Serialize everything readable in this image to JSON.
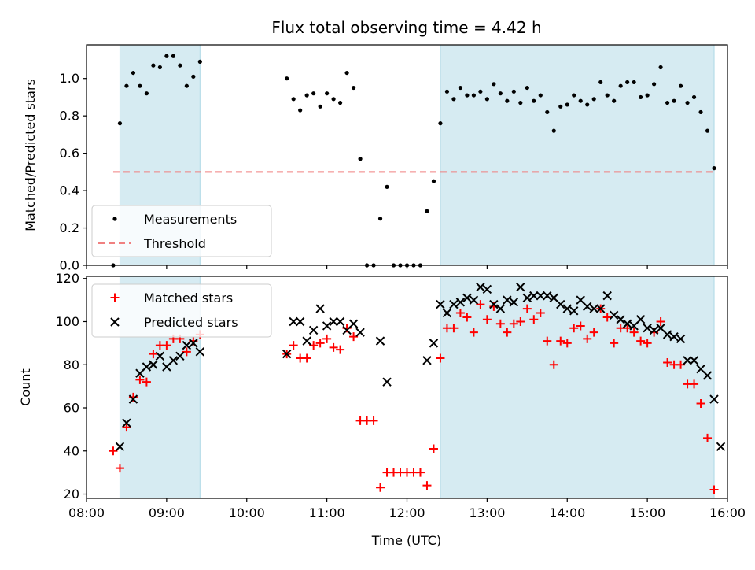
{
  "chart_data": [
    {
      "type": "scatter",
      "title": "Flux total observing time = 4.42 h",
      "xlabel": "",
      "ylabel": "Matched/Predicted stars",
      "xlim": [
        "08:00",
        "16:00"
      ],
      "ylim": [
        0,
        1.18
      ],
      "yticks": [
        "0.0",
        "0.2",
        "0.4",
        "0.6",
        "0.8",
        "1.0"
      ],
      "grid": false,
      "legend_position": "lower-left",
      "shaded_intervals": [
        [
          "08:25",
          "09:25"
        ],
        [
          "12:25",
          "15:50"
        ]
      ],
      "series": [
        {
          "name": "Measurements",
          "marker": "dot",
          "color": "#000000",
          "points": [
            [
              "08:20",
              0.0
            ],
            [
              "08:25",
              0.76
            ],
            [
              "08:30",
              0.96
            ],
            [
              "08:35",
              1.03
            ],
            [
              "08:40",
              0.96
            ],
            [
              "08:45",
              0.92
            ],
            [
              "08:50",
              1.07
            ],
            [
              "08:55",
              1.06
            ],
            [
              "09:00",
              1.12
            ],
            [
              "09:05",
              1.12
            ],
            [
              "09:10",
              1.07
            ],
            [
              "09:15",
              0.96
            ],
            [
              "09:20",
              1.01
            ],
            [
              "09:25",
              1.09
            ],
            [
              "10:30",
              1.0
            ],
            [
              "10:35",
              0.89
            ],
            [
              "10:40",
              0.83
            ],
            [
              "10:45",
              0.91
            ],
            [
              "10:50",
              0.92
            ],
            [
              "10:55",
              0.85
            ],
            [
              "11:00",
              0.92
            ],
            [
              "11:05",
              0.89
            ],
            [
              "11:10",
              0.87
            ],
            [
              "11:15",
              1.03
            ],
            [
              "11:20",
              0.95
            ],
            [
              "11:25",
              0.57
            ],
            [
              "11:30",
              0.0
            ],
            [
              "11:35",
              0.0
            ],
            [
              "11:40",
              0.25
            ],
            [
              "11:45",
              0.42
            ],
            [
              "11:50",
              0.0
            ],
            [
              "11:55",
              0.0
            ],
            [
              "12:00",
              0.0
            ],
            [
              "12:05",
              0.0
            ],
            [
              "12:10",
              0.0
            ],
            [
              "12:15",
              0.29
            ],
            [
              "12:20",
              0.45
            ],
            [
              "12:25",
              0.76
            ],
            [
              "12:30",
              0.93
            ],
            [
              "12:35",
              0.89
            ],
            [
              "12:40",
              0.95
            ],
            [
              "12:45",
              0.91
            ],
            [
              "12:50",
              0.91
            ],
            [
              "12:55",
              0.93
            ],
            [
              "13:00",
              0.89
            ],
            [
              "13:05",
              0.97
            ],
            [
              "13:10",
              0.92
            ],
            [
              "13:15",
              0.88
            ],
            [
              "13:20",
              0.93
            ],
            [
              "13:25",
              0.87
            ],
            [
              "13:30",
              0.95
            ],
            [
              "13:35",
              0.88
            ],
            [
              "13:40",
              0.91
            ],
            [
              "13:45",
              0.82
            ],
            [
              "13:50",
              0.72
            ],
            [
              "13:55",
              0.85
            ],
            [
              "14:00",
              0.86
            ],
            [
              "14:05",
              0.91
            ],
            [
              "14:10",
              0.88
            ],
            [
              "14:15",
              0.86
            ],
            [
              "14:20",
              0.89
            ],
            [
              "14:25",
              0.98
            ],
            [
              "14:30",
              0.91
            ],
            [
              "14:35",
              0.88
            ],
            [
              "14:40",
              0.96
            ],
            [
              "14:45",
              0.98
            ],
            [
              "14:50",
              0.98
            ],
            [
              "14:55",
              0.9
            ],
            [
              "15:00",
              0.91
            ],
            [
              "15:05",
              0.97
            ],
            [
              "15:10",
              1.06
            ],
            [
              "15:15",
              0.87
            ],
            [
              "15:20",
              0.88
            ],
            [
              "15:25",
              0.96
            ],
            [
              "15:30",
              0.87
            ],
            [
              "15:35",
              0.9
            ],
            [
              "15:40",
              0.82
            ],
            [
              "15:45",
              0.72
            ],
            [
              "15:50",
              0.52
            ]
          ]
        },
        {
          "name": "Threshold",
          "marker": "dashed-line",
          "color": "#f08080",
          "points": [
            [
              "08:20",
              0.5
            ],
            [
              "15:50",
              0.5
            ]
          ]
        }
      ]
    },
    {
      "type": "scatter",
      "title": "",
      "xlabel": "Time (UTC)",
      "ylabel": "Count",
      "xlim": [
        "08:00",
        "16:00"
      ],
      "xticks": [
        "08:00",
        "09:00",
        "10:00",
        "11:00",
        "12:00",
        "13:00",
        "14:00",
        "15:00",
        "16:00"
      ],
      "ylim": [
        18,
        121
      ],
      "yticks": [
        "20",
        "40",
        "60",
        "80",
        "100",
        "120"
      ],
      "grid": false,
      "legend_position": "upper-left",
      "shaded_intervals": [
        [
          "08:25",
          "09:25"
        ],
        [
          "12:25",
          "15:50"
        ]
      ],
      "series": [
        {
          "name": "Matched stars",
          "marker": "plus",
          "color": "#ff0000",
          "points": [
            [
              "08:20",
              40
            ],
            [
              "08:25",
              32
            ],
            [
              "08:30",
              51
            ],
            [
              "08:35",
              65
            ],
            [
              "08:40",
              73
            ],
            [
              "08:45",
              72
            ],
            [
              "08:50",
              85
            ],
            [
              "08:55",
              89
            ],
            [
              "09:00",
              89
            ],
            [
              "09:05",
              92
            ],
            [
              "09:10",
              92
            ],
            [
              "09:15",
              86
            ],
            [
              "09:20",
              91
            ],
            [
              "09:25",
              94
            ],
            [
              "10:30",
              85
            ],
            [
              "10:35",
              89
            ],
            [
              "10:40",
              83
            ],
            [
              "10:45",
              83
            ],
            [
              "10:50",
              89
            ],
            [
              "10:55",
              90
            ],
            [
              "11:00",
              92
            ],
            [
              "11:05",
              88
            ],
            [
              "11:10",
              87
            ],
            [
              "11:15",
              97
            ],
            [
              "11:20",
              93
            ],
            [
              "11:25",
              54
            ],
            [
              "11:30",
              54
            ],
            [
              "11:35",
              54
            ],
            [
              "11:40",
              23
            ],
            [
              "11:45",
              30
            ],
            [
              "11:50",
              30
            ],
            [
              "11:55",
              30
            ],
            [
              "12:00",
              30
            ],
            [
              "12:05",
              30
            ],
            [
              "12:10",
              30
            ],
            [
              "12:15",
              24
            ],
            [
              "12:20",
              41
            ],
            [
              "12:25",
              83
            ],
            [
              "12:30",
              97
            ],
            [
              "12:35",
              97
            ],
            [
              "12:40",
              104
            ],
            [
              "12:45",
              102
            ],
            [
              "12:50",
              95
            ],
            [
              "12:55",
              108
            ],
            [
              "13:00",
              101
            ],
            [
              "13:05",
              107
            ],
            [
              "13:10",
              99
            ],
            [
              "13:15",
              95
            ],
            [
              "13:20",
              99
            ],
            [
              "13:25",
              100
            ],
            [
              "13:30",
              106
            ],
            [
              "13:35",
              101
            ],
            [
              "13:40",
              104
            ],
            [
              "13:45",
              91
            ],
            [
              "13:50",
              80
            ],
            [
              "13:55",
              91
            ],
            [
              "14:00",
              90
            ],
            [
              "14:05",
              97
            ],
            [
              "14:10",
              98
            ],
            [
              "14:15",
              92
            ],
            [
              "14:20",
              95
            ],
            [
              "14:25",
              106
            ],
            [
              "14:30",
              102
            ],
            [
              "14:35",
              90
            ],
            [
              "14:40",
              97
            ],
            [
              "14:45",
              97
            ],
            [
              "14:50",
              95
            ],
            [
              "14:55",
              91
            ],
            [
              "15:00",
              90
            ],
            [
              "15:05",
              95
            ],
            [
              "15:10",
              100
            ],
            [
              "15:15",
              81
            ],
            [
              "15:20",
              80
            ],
            [
              "15:25",
              80
            ],
            [
              "15:30",
              71
            ],
            [
              "15:35",
              71
            ],
            [
              "15:40",
              62
            ],
            [
              "15:45",
              46
            ],
            [
              "15:50",
              22
            ]
          ]
        },
        {
          "name": "Predicted stars",
          "marker": "x",
          "color": "#000000",
          "points": [
            [
              "08:25",
              42
            ],
            [
              "08:30",
              53
            ],
            [
              "08:35",
              64
            ],
            [
              "08:40",
              76
            ],
            [
              "08:45",
              79
            ],
            [
              "08:50",
              80
            ],
            [
              "08:55",
              84
            ],
            [
              "09:00",
              79
            ],
            [
              "09:05",
              82
            ],
            [
              "09:10",
              84
            ],
            [
              "09:15",
              89
            ],
            [
              "09:20",
              90
            ],
            [
              "09:25",
              86
            ],
            [
              "10:30",
              85
            ],
            [
              "10:35",
              100
            ],
            [
              "10:40",
              100
            ],
            [
              "10:45",
              91
            ],
            [
              "10:50",
              96
            ],
            [
              "10:55",
              106
            ],
            [
              "11:00",
              98
            ],
            [
              "11:05",
              100
            ],
            [
              "11:10",
              100
            ],
            [
              "11:15",
              96
            ],
            [
              "11:20",
              99
            ],
            [
              "11:25",
              95
            ],
            [
              "11:40",
              91
            ],
            [
              "11:45",
              72
            ],
            [
              "12:15",
              82
            ],
            [
              "12:20",
              90
            ],
            [
              "12:25",
              108
            ],
            [
              "12:30",
              104
            ],
            [
              "12:35",
              108
            ],
            [
              "12:40",
              109
            ],
            [
              "12:45",
              111
            ],
            [
              "12:50",
              110
            ],
            [
              "12:55",
              116
            ],
            [
              "13:00",
              115
            ],
            [
              "13:05",
              108
            ],
            [
              "13:10",
              106
            ],
            [
              "13:15",
              110
            ],
            [
              "13:20",
              109
            ],
            [
              "13:25",
              116
            ],
            [
              "13:30",
              111
            ],
            [
              "13:35",
              112
            ],
            [
              "13:40",
              112
            ],
            [
              "13:45",
              112
            ],
            [
              "13:50",
              111
            ],
            [
              "13:55",
              108
            ],
            [
              "14:00",
              106
            ],
            [
              "14:05",
              105
            ],
            [
              "14:10",
              110
            ],
            [
              "14:15",
              107
            ],
            [
              "14:20",
              106
            ],
            [
              "14:25",
              106
            ],
            [
              "14:30",
              112
            ],
            [
              "14:35",
              103
            ],
            [
              "14:40",
              101
            ],
            [
              "14:45",
              99
            ],
            [
              "14:50",
              98
            ],
            [
              "14:55",
              101
            ],
            [
              "15:00",
              97
            ],
            [
              "15:05",
              96
            ],
            [
              "15:10",
              97
            ],
            [
              "15:15",
              94
            ],
            [
              "15:20",
              93
            ],
            [
              "15:25",
              92
            ],
            [
              "15:30",
              82
            ],
            [
              "15:35",
              82
            ],
            [
              "15:40",
              78
            ],
            [
              "15:45",
              75
            ],
            [
              "15:50",
              64
            ],
            [
              "15:55",
              42
            ]
          ]
        }
      ]
    }
  ]
}
